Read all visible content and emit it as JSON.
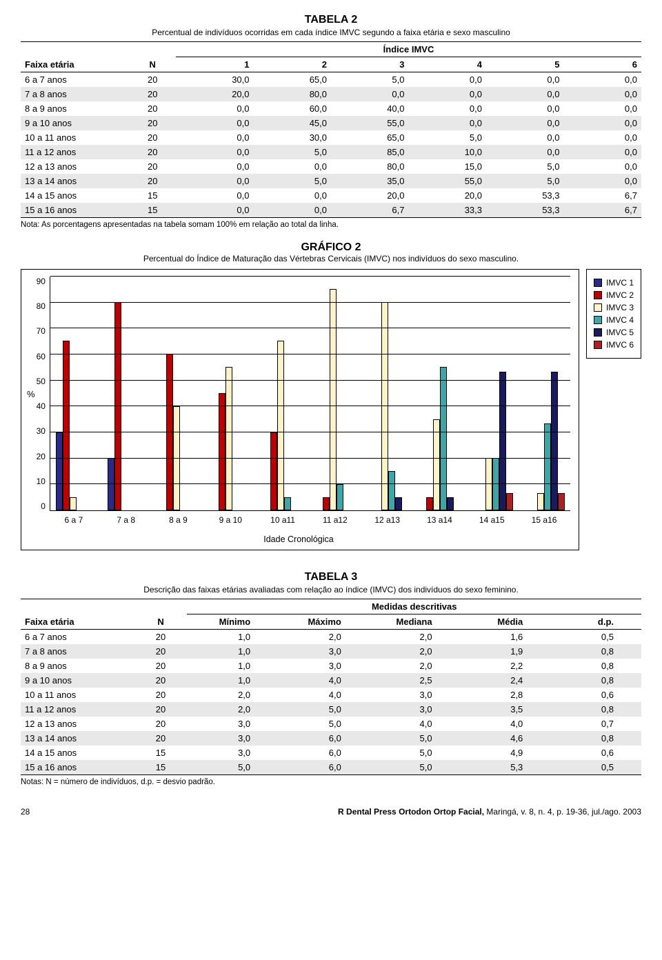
{
  "tabela2": {
    "title": "TABELA 2",
    "subtitle": "Percentual de indivíduos ocorridas em cada índice IMVC segundo a faixa etária e sexo masculino",
    "super_header": "Índice IMVC",
    "col_age": "Faixa etária",
    "col_n": "N",
    "cols": [
      "1",
      "2",
      "3",
      "4",
      "5",
      "6"
    ],
    "rows": [
      {
        "age": "6 a 7 anos",
        "n": "20",
        "v": [
          "30,0",
          "65,0",
          "5,0",
          "0,0",
          "0,0",
          "0,0"
        ]
      },
      {
        "age": "7 a 8 anos",
        "n": "20",
        "v": [
          "20,0",
          "80,0",
          "0,0",
          "0,0",
          "0,0",
          "0,0"
        ]
      },
      {
        "age": "8 a 9 anos",
        "n": "20",
        "v": [
          "0,0",
          "60,0",
          "40,0",
          "0,0",
          "0,0",
          "0,0"
        ]
      },
      {
        "age": "9 a 10 anos",
        "n": "20",
        "v": [
          "0,0",
          "45,0",
          "55,0",
          "0,0",
          "0,0",
          "0,0"
        ]
      },
      {
        "age": "10 a 11 anos",
        "n": "20",
        "v": [
          "0,0",
          "30,0",
          "65,0",
          "5,0",
          "0,0",
          "0,0"
        ]
      },
      {
        "age": "11 a 12 anos",
        "n": "20",
        "v": [
          "0,0",
          "5,0",
          "85,0",
          "10,0",
          "0,0",
          "0,0"
        ]
      },
      {
        "age": "12 a 13 anos",
        "n": "20",
        "v": [
          "0,0",
          "0,0",
          "80,0",
          "15,0",
          "5,0",
          "0,0"
        ]
      },
      {
        "age": "13 a 14 anos",
        "n": "20",
        "v": [
          "0,0",
          "5,0",
          "35,0",
          "55,0",
          "5,0",
          "0,0"
        ]
      },
      {
        "age": "14 a 15 anos",
        "n": "15",
        "v": [
          "0,0",
          "0,0",
          "20,0",
          "20,0",
          "53,3",
          "6,7"
        ]
      },
      {
        "age": "15 a 16 anos",
        "n": "15",
        "v": [
          "0,0",
          "0,0",
          "6,7",
          "33,3",
          "53,3",
          "6,7"
        ]
      }
    ],
    "note": "Nota: As porcentagens apresentadas na tabela somam 100% em relação ao total da linha."
  },
  "grafico2": {
    "title": "GRÁFICO 2",
    "subtitle": "Percentual do Índice de Maturação das Vértebras Cervicais (IMVC) nos indivíduos do sexo masculino.",
    "ylabel": "%",
    "ylim_max": 90,
    "yticks": [
      90,
      80,
      70,
      60,
      50,
      40,
      30,
      20,
      10,
      0
    ],
    "xaxis_title": "Idade Cronológica",
    "categories": [
      "6 a 7",
      "7 a 8",
      "8 a 9",
      "9 a 10",
      "10 a11",
      "11 a12",
      "12 a13",
      "13 a14",
      "14 a15",
      "15 a16"
    ],
    "series_colors": [
      "#2a2a8a",
      "#c00000",
      "#fff2c4",
      "#3aa8a8",
      "#1a1a60",
      "#b02020"
    ],
    "series_labels": [
      "IMVC 1",
      "IMVC 2",
      "IMVC 3",
      "IMVC 4",
      "IMVC 5",
      "IMVC 6"
    ],
    "data": [
      [
        30,
        65,
        5,
        0,
        0,
        0
      ],
      [
        20,
        80,
        0,
        0,
        0,
        0
      ],
      [
        0,
        60,
        40,
        0,
        0,
        0
      ],
      [
        0,
        45,
        55,
        0,
        0,
        0
      ],
      [
        0,
        30,
        65,
        5,
        0,
        0
      ],
      [
        0,
        5,
        85,
        10,
        0,
        0
      ],
      [
        0,
        0,
        80,
        15,
        5,
        0
      ],
      [
        0,
        5,
        35,
        55,
        5,
        0
      ],
      [
        0,
        0,
        20,
        20,
        53.3,
        6.7
      ],
      [
        0,
        0,
        6.7,
        33.3,
        53.3,
        6.7
      ]
    ]
  },
  "tabela3": {
    "title": "TABELA 3",
    "subtitle": "Descrição das faixas etárias avaliadas com relação ao índice (IMVC) dos indivíduos do sexo feminino.",
    "super_header": "Medidas descritivas",
    "col_age": "Faixa etária",
    "col_n": "N",
    "cols": [
      "Mínimo",
      "Máximo",
      "Mediana",
      "Média",
      "d.p."
    ],
    "rows": [
      {
        "age": "6 a 7 anos",
        "n": "20",
        "v": [
          "1,0",
          "2,0",
          "2,0",
          "1,6",
          "0,5"
        ]
      },
      {
        "age": "7 a 8 anos",
        "n": "20",
        "v": [
          "1,0",
          "3,0",
          "2,0",
          "1,9",
          "0,8"
        ]
      },
      {
        "age": "8 a 9 anos",
        "n": "20",
        "v": [
          "1,0",
          "3,0",
          "2,0",
          "2,2",
          "0,8"
        ]
      },
      {
        "age": "9 a 10 anos",
        "n": "20",
        "v": [
          "1,0",
          "4,0",
          "2,5",
          "2,4",
          "0,8"
        ]
      },
      {
        "age": "10 a 11 anos",
        "n": "20",
        "v": [
          "2,0",
          "4,0",
          "3,0",
          "2,8",
          "0,6"
        ]
      },
      {
        "age": "11 a 12 anos",
        "n": "20",
        "v": [
          "2,0",
          "5,0",
          "3,0",
          "3,5",
          "0,8"
        ]
      },
      {
        "age": "12 a 13 anos",
        "n": "20",
        "v": [
          "3,0",
          "5,0",
          "4,0",
          "4,0",
          "0,7"
        ]
      },
      {
        "age": "13 a 14 anos",
        "n": "20",
        "v": [
          "3,0",
          "6,0",
          "5,0",
          "4,6",
          "0,8"
        ]
      },
      {
        "age": "14 a 15 anos",
        "n": "15",
        "v": [
          "3,0",
          "6,0",
          "5,0",
          "4,9",
          "0,6"
        ]
      },
      {
        "age": "15 a 16 anos",
        "n": "15",
        "v": [
          "5,0",
          "6,0",
          "5,0",
          "5,3",
          "0,5"
        ]
      }
    ],
    "note": "Notas: N = número de indivíduos, d.p. = desvio padrão."
  },
  "footer": {
    "page": "28",
    "journal_bold": "R Dental Press Ortodon Ortop Facial,",
    "journal_rest": " Maringá, v. 8, n. 4, p. 19-36, jul./ago. 2003"
  }
}
